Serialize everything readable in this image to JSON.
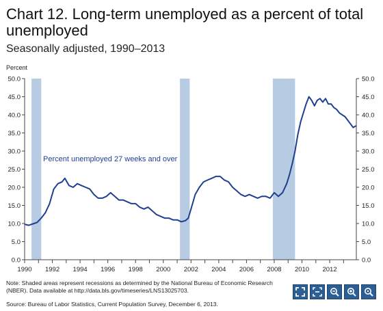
{
  "header": {
    "title": "Chart 12.  Long-term unemployed as a percent of total unemployed",
    "subtitle": "Seasonally adjusted, 1990–2013"
  },
  "footer": {
    "note": "Note:  Shaded areas represent recessions as determined by the National Bureau of Economic Research (NBER). Data available at http://data.bls.gov/timeseries/LNS13025703.",
    "source": "Source:  Bureau of Labor Statistics, Current Population Survey, December 6, 2013."
  },
  "toolbar": {
    "icons": [
      "fullscreen-icon",
      "fit-icon",
      "zoom-out-icon",
      "zoom-in-icon",
      "zoom-reset-icon"
    ]
  },
  "colors": {
    "line": "#1f3f8f",
    "recession": "#b7cbe3",
    "axis": "#444444"
  },
  "chart_data": {
    "type": "line",
    "title": "Chart 12.  Long-term unemployed as a percent of total unemployed",
    "subtitle": "Seasonally adjusted, 1990–2013",
    "ylabel": "Percent",
    "ylim": [
      0,
      50
    ],
    "yticks": [
      "0.0",
      "5.0",
      "10.0",
      "15.0",
      "20.0",
      "25.0",
      "30.0",
      "35.0",
      "40.0",
      "45.0",
      "50.0"
    ],
    "xlim": [
      1990,
      2013.92
    ],
    "xticks": [
      "1990",
      "1992",
      "1994",
      "1996",
      "1998",
      "2000",
      "2002",
      "2004",
      "2006",
      "2008",
      "2010",
      "2012"
    ],
    "grid": false,
    "annotation": "Percent unemployed 27 weeks and over",
    "recessions": [
      [
        1990.5,
        1991.2
      ],
      [
        2001.2,
        2001.9
      ],
      [
        2007.9,
        2009.5
      ]
    ],
    "series": [
      {
        "x": [
          1990.0,
          1990.3,
          1990.6,
          1990.9,
          1991.2,
          1991.5,
          1991.8,
          1992.1,
          1992.4,
          1992.7,
          1992.9,
          1993.2,
          1993.5,
          1993.8,
          1994.1,
          1994.4,
          1994.7,
          1995.0,
          1995.3,
          1995.6,
          1995.9,
          1996.2,
          1996.5,
          1996.8,
          1997.1,
          1997.4,
          1997.7,
          1998.0,
          1998.3,
          1998.6,
          1998.9,
          1999.2,
          1999.5,
          1999.8,
          2000.1,
          2000.4,
          2000.7,
          2001.0,
          2001.3,
          2001.6,
          2001.8,
          2002.0,
          2002.3,
          2002.6,
          2002.9,
          2003.2,
          2003.5,
          2003.8,
          2004.1,
          2004.4,
          2004.7,
          2005.0,
          2005.3,
          2005.6,
          2005.9,
          2006.2,
          2006.5,
          2006.8,
          2007.1,
          2007.4,
          2007.7,
          2008.0,
          2008.3,
          2008.6,
          2008.9,
          2009.1,
          2009.3,
          2009.5,
          2009.7,
          2009.9,
          2010.1,
          2010.3,
          2010.5,
          2010.7,
          2010.9,
          2011.1,
          2011.3,
          2011.5,
          2011.7,
          2011.9,
          2012.1,
          2012.3,
          2012.5,
          2012.7,
          2012.9,
          2013.1,
          2013.3,
          2013.5,
          2013.7,
          2013.9
        ],
        "values": [
          9.8,
          9.5,
          9.9,
          10.3,
          11.5,
          13.0,
          15.5,
          19.5,
          21.0,
          21.5,
          22.5,
          20.5,
          20.0,
          21.0,
          20.5,
          20.0,
          19.5,
          18.0,
          17.0,
          17.0,
          17.5,
          18.5,
          17.5,
          16.5,
          16.5,
          16.0,
          15.5,
          15.5,
          14.5,
          14.0,
          14.5,
          13.5,
          12.5,
          12.0,
          11.5,
          11.5,
          11.0,
          11.0,
          10.5,
          10.8,
          11.5,
          14.0,
          18.0,
          20.0,
          21.5,
          22.0,
          22.5,
          23.0,
          23.0,
          22.0,
          21.5,
          20.0,
          19.0,
          18.0,
          17.5,
          18.0,
          17.5,
          17.0,
          17.5,
          17.5,
          17.0,
          18.5,
          17.5,
          18.5,
          21.0,
          23.5,
          26.5,
          30.0,
          34.5,
          38.0,
          40.5,
          43.0,
          45.0,
          44.0,
          42.5,
          44.0,
          44.5,
          43.5,
          44.5,
          43.0,
          43.0,
          42.0,
          41.5,
          40.5,
          40.0,
          39.5,
          38.5,
          37.5,
          36.5,
          37.0
        ]
      }
    ]
  }
}
